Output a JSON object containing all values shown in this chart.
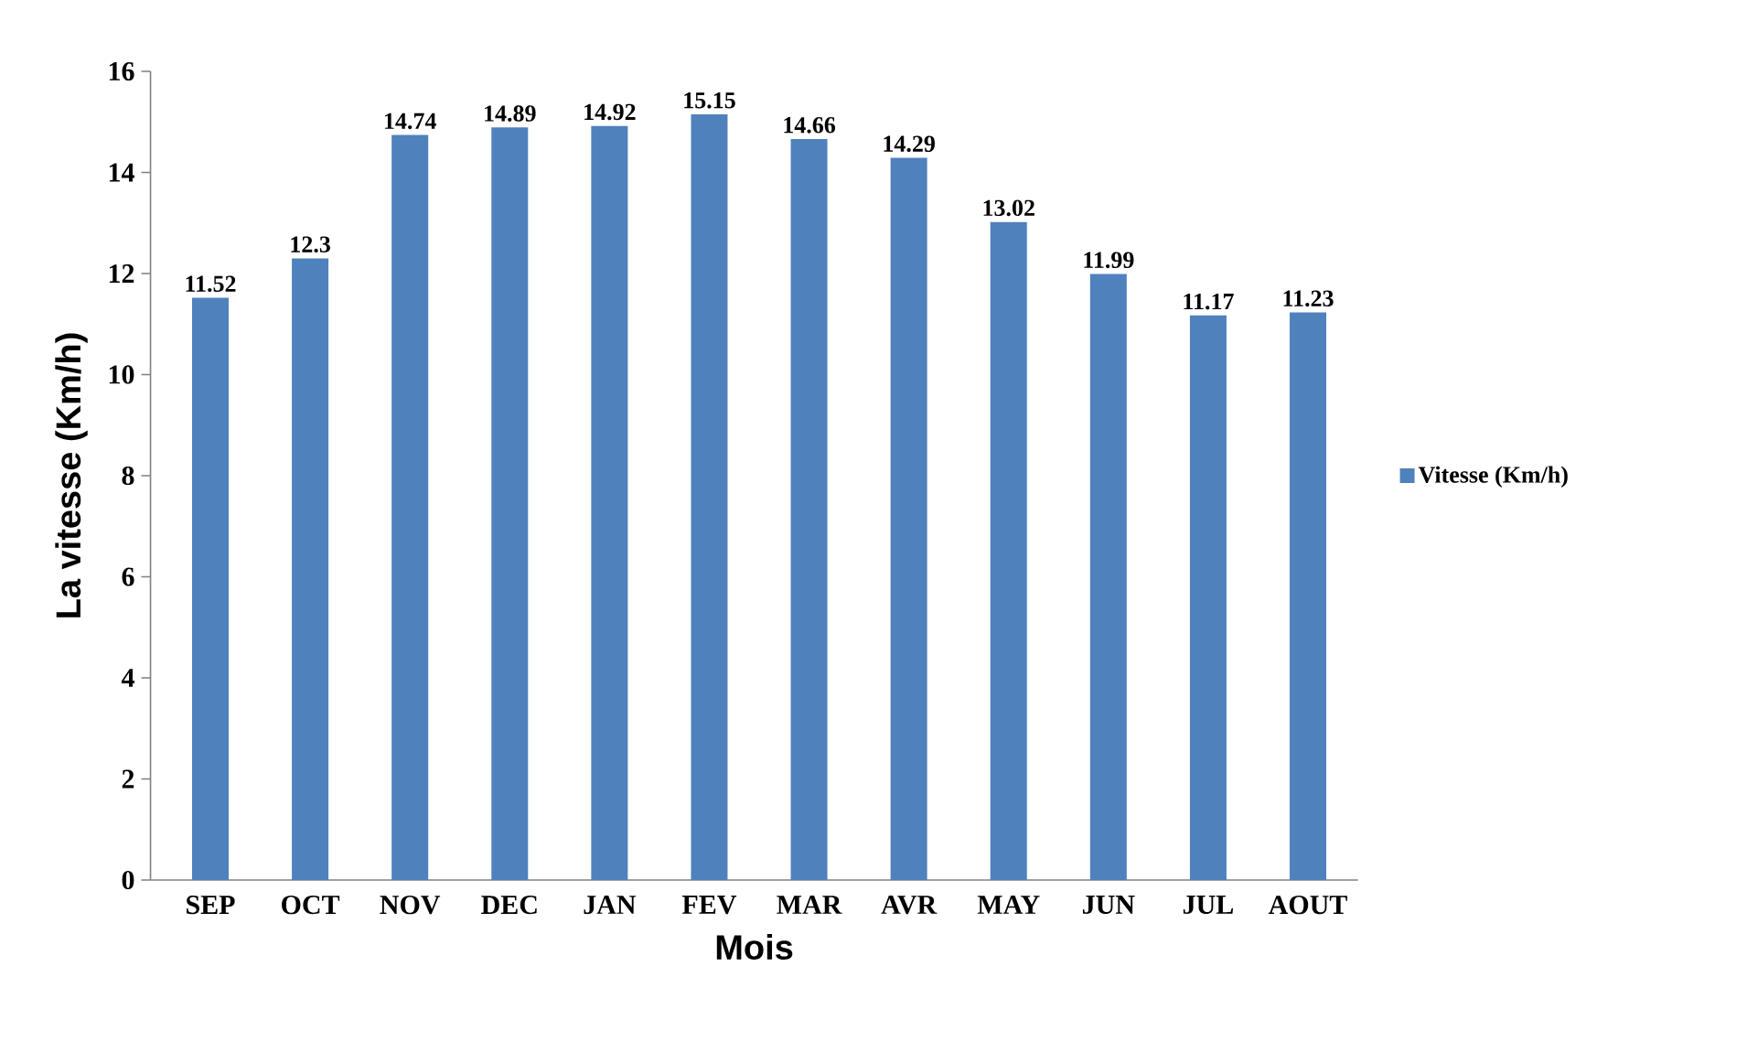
{
  "chart_data": {
    "type": "bar",
    "xlabel": "Mois",
    "ylabel": "La vitesse (Km/h)",
    "categories": [
      "SEP",
      "OCT",
      "NOV",
      "DEC",
      "JAN",
      "FEV",
      "MAR",
      "AVR",
      "MAY",
      "JUN",
      "JUL",
      "AOUT"
    ],
    "series": [
      {
        "name": "Vitesse (Km/h)",
        "color": "#4f81bd",
        "values": [
          11.52,
          12.3,
          14.74,
          14.89,
          14.92,
          15.15,
          14.66,
          14.29,
          13.02,
          11.99,
          11.17,
          11.23
        ]
      }
    ],
    "ylim": [
      0,
      16
    ],
    "yticks": [
      0,
      2,
      4,
      6,
      8,
      10,
      12,
      14,
      16
    ],
    "grid": false,
    "legend": "right",
    "data_labels": true
  }
}
